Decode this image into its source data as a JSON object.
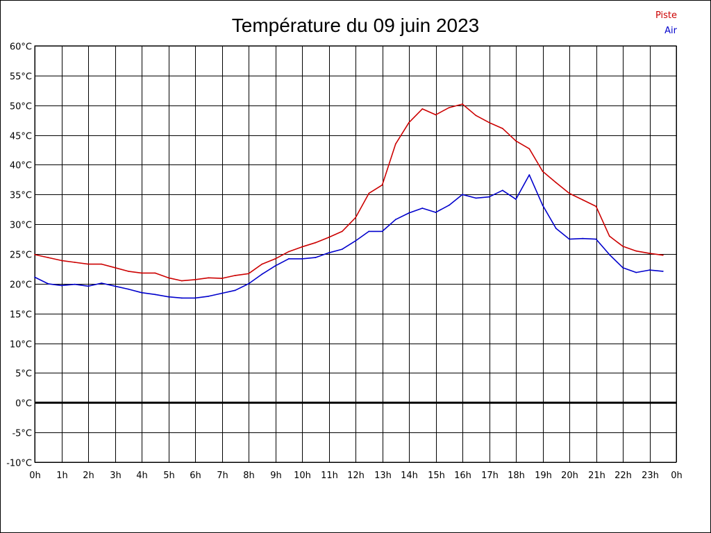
{
  "chart_data": {
    "type": "line",
    "title": "Température du 09 juin 2023",
    "xlabel": "",
    "ylabel": "",
    "ylim": [
      -10,
      60
    ],
    "y_ticks": [
      60,
      55,
      50,
      45,
      40,
      35,
      30,
      25,
      20,
      15,
      10,
      5,
      0,
      -5,
      -10
    ],
    "y_tick_suffix": "°C",
    "xlim": [
      0,
      24
    ],
    "x_tick_labels": [
      "0h",
      "1h",
      "2h",
      "3h",
      "4h",
      "5h",
      "6h",
      "7h",
      "8h",
      "9h",
      "10h",
      "11h",
      "12h",
      "13h",
      "14h",
      "15h",
      "16h",
      "17h",
      "18h",
      "19h",
      "20h",
      "21h",
      "22h",
      "23h",
      "0h"
    ],
    "grid": true,
    "zero_line": true,
    "legend_position": "top-right",
    "x": [
      0,
      0.5,
      1,
      1.5,
      2,
      2.5,
      3,
      3.5,
      4,
      4.5,
      5,
      5.5,
      6,
      6.5,
      7,
      7.5,
      8,
      8.5,
      9,
      9.5,
      10,
      10.5,
      11,
      11.5,
      12,
      12.5,
      13,
      13.5,
      14,
      14.5,
      15,
      15.5,
      16,
      16.5,
      17,
      17.5,
      18,
      18.5,
      19,
      19.5,
      20,
      20.5,
      21,
      21.5,
      22,
      22.5,
      23,
      23.5
    ],
    "series": [
      {
        "name": "Piste",
        "color": "#cc0000",
        "values": [
          24.9,
          24.4,
          23.9,
          23.6,
          23.3,
          23.3,
          22.7,
          22.1,
          21.8,
          21.8,
          21.0,
          20.5,
          20.7,
          21.0,
          20.9,
          21.4,
          21.7,
          23.3,
          24.2,
          25.4,
          26.2,
          26.9,
          27.8,
          28.8,
          31.1,
          35.2,
          36.6,
          43.5,
          47.1,
          49.4,
          48.4,
          49.6,
          50.2,
          48.3,
          47.1,
          46.1,
          44.0,
          42.7,
          38.9,
          37.0,
          35.2,
          34.1,
          33.0,
          28.0,
          26.3,
          25.5,
          25.1,
          24.8
        ]
      },
      {
        "name": "Air",
        "color": "#0000cc",
        "values": [
          21.1,
          20.0,
          19.7,
          19.9,
          19.6,
          20.1,
          19.6,
          19.1,
          18.5,
          18.2,
          17.8,
          17.6,
          17.6,
          17.9,
          18.4,
          18.9,
          20.0,
          21.6,
          23.0,
          24.2,
          24.2,
          24.4,
          25.2,
          25.8,
          27.2,
          28.8,
          28.8,
          30.8,
          31.9,
          32.7,
          32.0,
          33.2,
          35.0,
          34.4,
          34.6,
          35.7,
          34.2,
          38.3,
          33.2,
          29.3,
          27.5,
          27.6,
          27.5,
          24.9,
          22.7,
          21.9,
          22.3,
          22.1
        ]
      }
    ]
  }
}
